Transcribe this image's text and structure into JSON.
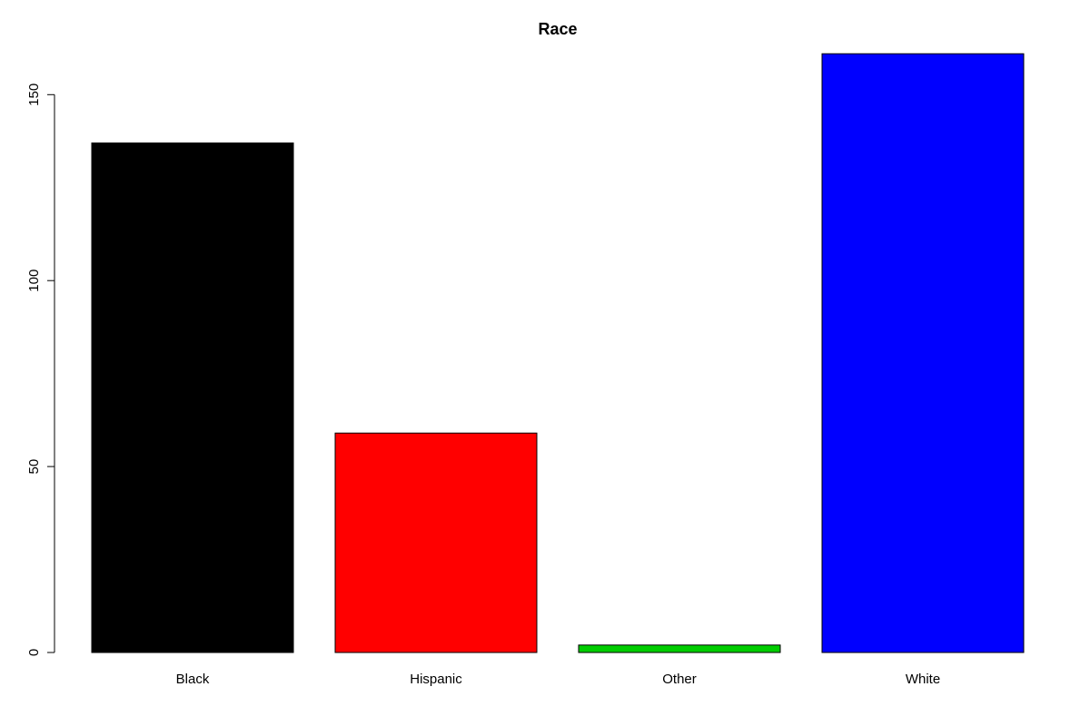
{
  "chart_data": {
    "type": "bar",
    "title": "Race",
    "xlabel": "",
    "ylabel": "",
    "categories": [
      "Black",
      "Hispanic",
      "Other",
      "White"
    ],
    "values": [
      137,
      59,
      2,
      161
    ],
    "colors": [
      "#000000",
      "#ff0000",
      "#00cd00",
      "#0000ff"
    ],
    "ylim": [
      0,
      161
    ],
    "yticks": [
      "0",
      "50",
      "100",
      "150"
    ],
    "grid": false,
    "legend": "none"
  }
}
